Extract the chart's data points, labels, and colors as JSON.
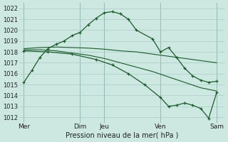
{
  "bg_color": "#cce8e0",
  "grid_color": "#aacccc",
  "line_color": "#1a5c2a",
  "title": "Pression niveau de la mer( hPa )",
  "ylim": [
    1011.5,
    1022.5
  ],
  "yticks": [
    1012,
    1013,
    1014,
    1015,
    1016,
    1017,
    1018,
    1019,
    1020,
    1021,
    1022
  ],
  "xtick_labels": [
    "Mer",
    "Dim",
    "Jeu",
    "Ven",
    "Sam"
  ],
  "xtick_positions": [
    0,
    3.5,
    5.0,
    8.5,
    12.0
  ],
  "vline_positions": [
    0,
    3.5,
    5.0,
    8.5,
    12.0
  ],
  "xlim": [
    -0.3,
    12.5
  ],
  "line1_x": [
    0,
    0.5,
    1.0,
    1.5,
    2.0,
    2.5,
    3.0,
    3.5,
    4.0,
    4.5,
    5.0,
    5.5,
    6.0,
    6.5,
    7.0,
    8.0,
    8.5,
    9.0,
    9.5,
    10.0,
    10.5,
    11.0,
    11.5,
    12.0
  ],
  "line1_y": [
    1015.2,
    1016.3,
    1017.5,
    1018.3,
    1018.7,
    1019.0,
    1019.5,
    1019.8,
    1020.5,
    1021.1,
    1021.6,
    1021.7,
    1021.5,
    1021.0,
    1020.0,
    1019.2,
    1018.0,
    1018.4,
    1017.5,
    1016.5,
    1015.8,
    1015.4,
    1015.2,
    1015.3
  ],
  "line2_x": [
    0,
    1.0,
    2.0,
    3.0,
    4.0,
    5.0,
    6.0,
    7.0,
    8.0,
    9.0,
    10.0,
    11.0,
    12.0
  ],
  "line2_y": [
    1018.3,
    1018.4,
    1018.45,
    1018.4,
    1018.35,
    1018.25,
    1018.1,
    1018.0,
    1017.8,
    1017.6,
    1017.4,
    1017.2,
    1017.0
  ],
  "line3_x": [
    0,
    1.0,
    2.0,
    3.0,
    4.0,
    5.0,
    6.0,
    7.0,
    8.0,
    9.0,
    10.0,
    11.0,
    12.0
  ],
  "line3_y": [
    1018.2,
    1018.2,
    1018.1,
    1017.9,
    1017.7,
    1017.4,
    1017.0,
    1016.6,
    1016.2,
    1015.7,
    1015.2,
    1014.7,
    1014.4
  ],
  "line4_x": [
    0,
    1.5,
    3.0,
    4.5,
    5.5,
    6.5,
    7.5,
    8.5,
    9.0,
    9.5,
    10.0,
    10.5,
    11.0,
    11.5,
    12.0
  ],
  "line4_y": [
    1018.1,
    1018.0,
    1017.8,
    1017.3,
    1016.8,
    1016.0,
    1015.0,
    1013.8,
    1013.0,
    1013.1,
    1013.3,
    1013.1,
    1012.8,
    1011.9,
    1014.3
  ]
}
